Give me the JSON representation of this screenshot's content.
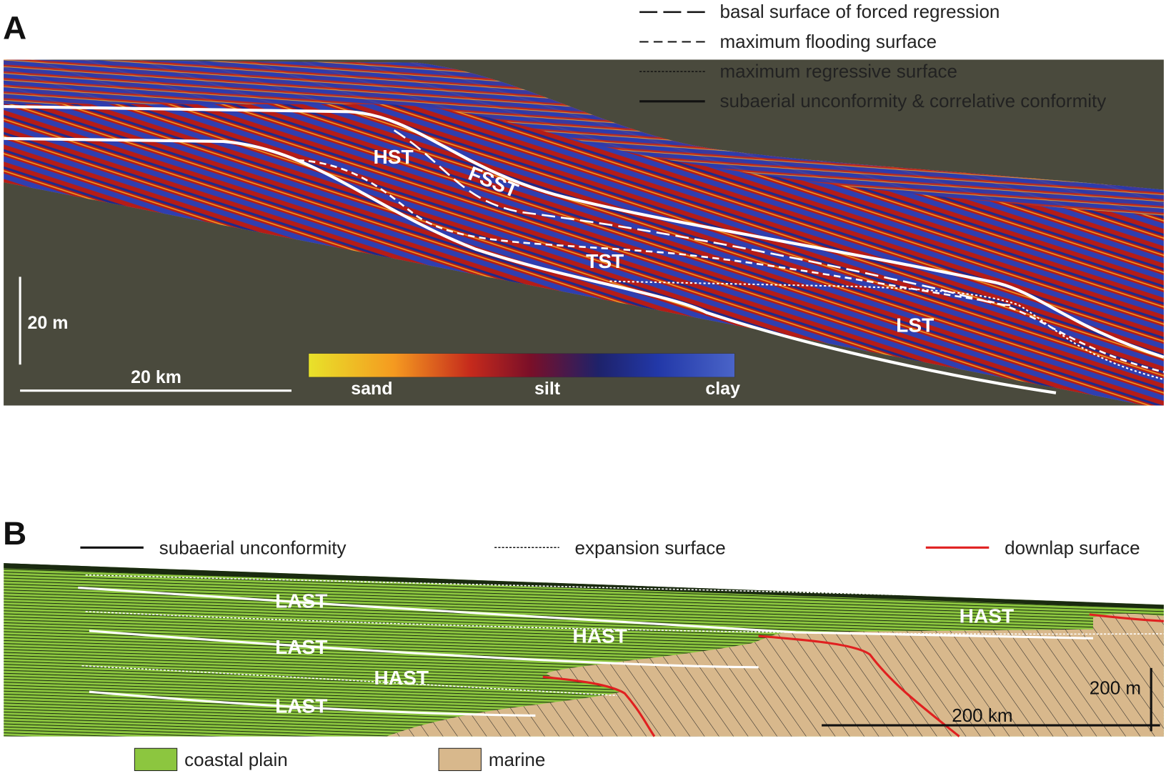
{
  "panel_a": {
    "label": "A",
    "legend": [
      "basal surface of forced regression",
      "maximum flooding surface",
      "maximum regressive surface",
      "subaerial unconformity & correlative conformity"
    ],
    "tracts": [
      "HST",
      "FSST",
      "TST",
      "LST"
    ],
    "scale_vertical": "20 m",
    "scale_horizontal": "20 km",
    "colorbar": [
      "sand",
      "silt",
      "clay"
    ]
  },
  "panel_b": {
    "label": "B",
    "legend": [
      "subaerial unconformity",
      "expansion surface",
      "downlap surface"
    ],
    "tracts": [
      "LAST",
      "LAST",
      "LAST",
      "HAST",
      "HAST",
      "HAST"
    ],
    "scale_vertical": "200 m",
    "scale_horizontal": "200 km",
    "key": [
      "coastal plain",
      "marine"
    ]
  }
}
